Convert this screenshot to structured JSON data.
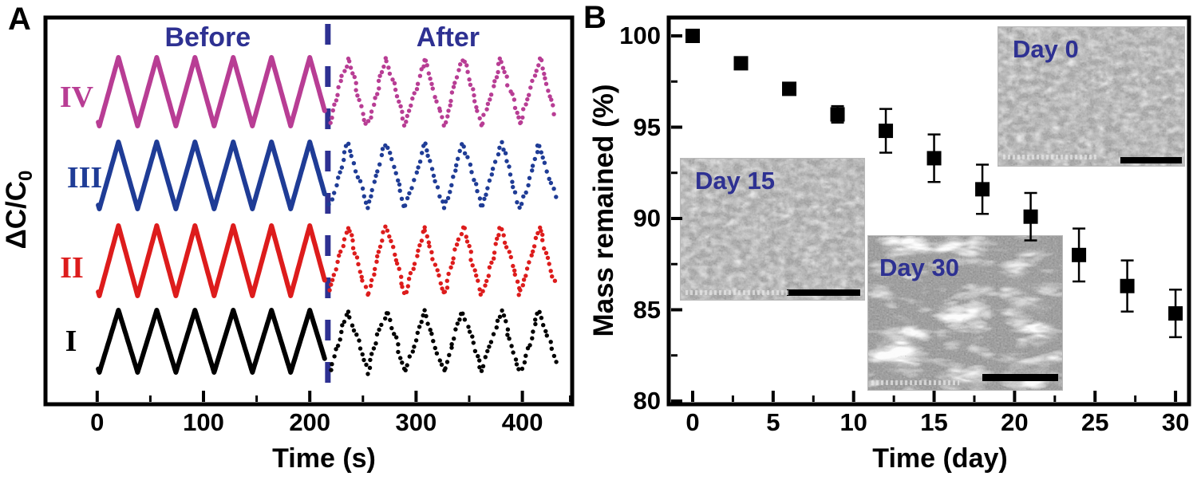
{
  "panels": {
    "a": {
      "panel_label": "A",
      "before_label": "Before",
      "after_label": "After",
      "xlabel": "Time (s)",
      "ylabel_base": "ΔC/C",
      "ylabel_sub": "0"
    },
    "b": {
      "panel_label": "B",
      "xlabel": "Time (day)",
      "ylabel": "Mass remained (%)"
    }
  },
  "colors": {
    "navy_annotation": "#2E3192",
    "trace_I": "#000000",
    "trace_II": "#DD1C1C",
    "trace_III": "#1F3C96",
    "trace_IV": "#B83D94",
    "marker": "#000000",
    "axis": "#000000",
    "sem_gray": "#9b9b9b"
  },
  "chart_data": [
    {
      "type": "line",
      "title": "Cyclic sensing response (ΔC/C0) before and after degradation",
      "xlabel": "Time (s)",
      "ylabel": "ΔC/C0",
      "xlim": [
        -49,
        447
      ],
      "xticks": [
        0,
        100,
        200,
        300,
        400
      ],
      "xticks_minor": [
        50,
        150,
        250,
        350,
        445
      ],
      "grid": false,
      "divider_x_s": 217,
      "region_labels": [
        {
          "text": "Before",
          "x_s": 104
        },
        {
          "text": "After",
          "x_s": 330
        }
      ],
      "wave": {
        "period_s": 36,
        "trough_start_s": 2,
        "solid_t_s": [
          1,
          214
        ],
        "dotted_t_s": [
          219,
          431
        ],
        "cycles_before": 6,
        "cycles_after": 6
      },
      "series": [
        {
          "name": "I",
          "color": "#000000",
          "before_style": "solid",
          "after_style": "dotted"
        },
        {
          "name": "II",
          "color": "#DD1C1C",
          "before_style": "solid",
          "after_style": "dotted"
        },
        {
          "name": "III",
          "color": "#1F3C96",
          "before_style": "solid",
          "after_style": "dotted"
        },
        {
          "name": "IV",
          "color": "#B83D94",
          "before_style": "solid",
          "after_style": "dotted"
        }
      ]
    },
    {
      "type": "scatter",
      "title": "Mass remained (%) vs degradation time",
      "xlabel": "Time (day)",
      "ylabel": "Mass remained (%)",
      "xlim": [
        -1.5,
        30.8
      ],
      "ylim": [
        79.8,
        101
      ],
      "xticks": [
        0,
        5,
        10,
        15,
        20,
        25,
        30
      ],
      "xticks_minor": [
        2.5,
        7.5,
        12.5,
        17.5,
        22.5,
        27.5
      ],
      "yticks": [
        100,
        95,
        90,
        85,
        80
      ],
      "yticks_minor": [
        97.5,
        92.5,
        87.5,
        82.5
      ],
      "marker": "square",
      "color": "#000000",
      "x": [
        0,
        3,
        6,
        9,
        12,
        15,
        18,
        21,
        24,
        27,
        30
      ],
      "y": [
        100.0,
        98.5,
        97.1,
        95.7,
        94.8,
        93.3,
        91.6,
        90.1,
        88.0,
        86.3,
        84.8
      ],
      "yerr": [
        0,
        0,
        0.2,
        0.45,
        1.2,
        1.3,
        1.35,
        1.3,
        1.45,
        1.4,
        1.3
      ],
      "insets": [
        {
          "label": "Day 0",
          "position": "top-right",
          "scale_bar": true
        },
        {
          "label": "Day 15",
          "position": "middle-left",
          "scale_bar": true
        },
        {
          "label": "Day 30",
          "position": "bottom-center",
          "scale_bar": true
        }
      ]
    }
  ]
}
